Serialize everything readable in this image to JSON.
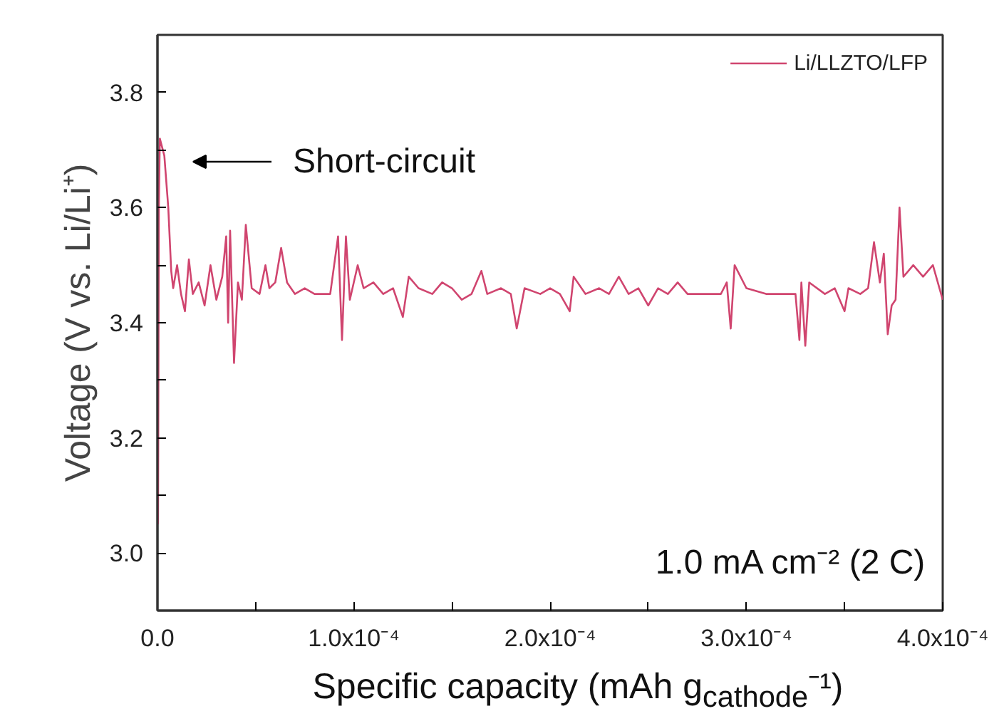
{
  "chart_data": {
    "type": "line",
    "xlabel": "Specific capacity (mAh g$_{cathode}$⁻¹)",
    "ylabel": "Voltage (V vs. Li/Li⁺)",
    "xlim": [
      0,
      0.0004
    ],
    "ylim": [
      2.9,
      3.9
    ],
    "xticks": [
      {
        "value": 0,
        "label": "0.0"
      },
      {
        "value": 5e-05,
        "label": null
      },
      {
        "value": 0.0001,
        "label": "1.0x10⁻⁴"
      },
      {
        "value": 0.00015,
        "label": null
      },
      {
        "value": 0.0002,
        "label": "2.0x10⁻⁴"
      },
      {
        "value": 0.00025,
        "label": null
      },
      {
        "value": 0.0003,
        "label": "3.0x10⁻⁴"
      },
      {
        "value": 0.00035,
        "label": null
      },
      {
        "value": 0.0004,
        "label": "4.0x10⁻⁴"
      }
    ],
    "yticks": [
      {
        "value": 3.0,
        "label": "3.0"
      },
      {
        "value": 3.1,
        "label": null
      },
      {
        "value": 3.2,
        "label": "3.2"
      },
      {
        "value": 3.3,
        "label": null
      },
      {
        "value": 3.4,
        "label": "3.4"
      },
      {
        "value": 3.5,
        "label": null
      },
      {
        "value": 3.6,
        "label": "3.6"
      },
      {
        "value": 3.7,
        "label": null
      },
      {
        "value": 3.8,
        "label": "3.8"
      }
    ],
    "grid": false,
    "legend": "top right",
    "line_style": "solid",
    "annotations": [
      "Short-circuit",
      "1.0 mA cm⁻² (2 C)"
    ],
    "series": [
      {
        "name": "Li/LLZTO/LFP",
        "color": "#d0456f",
        "x": [
          3e-07,
          7e-07,
          1.2e-06,
          3.5e-06,
          5.5e-06,
          7e-06,
          8e-06,
          1e-05,
          1.2e-05,
          1.4e-05,
          1.6e-05,
          1.8e-05,
          2.1e-05,
          2.4e-05,
          2.7e-05,
          3e-05,
          3.3e-05,
          3.5e-05,
          3.6e-05,
          3.7e-05,
          3.9e-05,
          4.1e-05,
          4.3e-05,
          4.5e-05,
          4.8e-05,
          5.2e-05,
          5.5e-05,
          5.7e-05,
          6e-05,
          6.3e-05,
          6.6e-05,
          7e-05,
          7.5e-05,
          8e-05,
          8.8e-05,
          9.2e-05,
          9.4e-05,
          9.6e-05,
          9.8e-05,
          0.000102,
          0.000105,
          0.00011,
          0.000115,
          0.00012,
          0.000125,
          0.000128,
          0.000133,
          0.00014,
          0.000145,
          0.00015,
          0.000155,
          0.00016,
          0.000165,
          0.000168,
          0.000175,
          0.00018,
          0.000183,
          0.000187,
          0.000195,
          0.0002,
          0.000205,
          0.00021,
          0.000212,
          0.000218,
          0.000225,
          0.00023,
          0.000235,
          0.00024,
          0.000245,
          0.00025,
          0.000255,
          0.00026,
          0.000265,
          0.00027,
          0.00028,
          0.000287,
          0.00029,
          0.000292,
          0.000294,
          0.0003,
          0.00031,
          0.000325,
          0.000327,
          0.000328,
          0.00033,
          0.000332,
          0.00034,
          0.000345,
          0.00035,
          0.000352,
          0.000358,
          0.000362,
          0.000365,
          0.000368,
          0.00037,
          0.000372,
          0.000374,
          0.000376,
          0.000378,
          0.00038,
          0.000385,
          0.00039,
          0.000395,
          0.0004
        ],
        "values": [
          3.05,
          3.6,
          3.72,
          3.69,
          3.6,
          3.49,
          3.46,
          3.5,
          3.45,
          3.42,
          3.51,
          3.45,
          3.47,
          3.43,
          3.5,
          3.44,
          3.48,
          3.55,
          3.4,
          3.56,
          3.33,
          3.47,
          3.44,
          3.57,
          3.46,
          3.45,
          3.5,
          3.46,
          3.47,
          3.53,
          3.47,
          3.45,
          3.46,
          3.45,
          3.45,
          3.55,
          3.37,
          3.55,
          3.44,
          3.5,
          3.46,
          3.47,
          3.45,
          3.46,
          3.41,
          3.48,
          3.46,
          3.45,
          3.47,
          3.46,
          3.44,
          3.45,
          3.49,
          3.45,
          3.46,
          3.45,
          3.39,
          3.46,
          3.45,
          3.46,
          3.45,
          3.42,
          3.48,
          3.45,
          3.46,
          3.45,
          3.48,
          3.45,
          3.46,
          3.43,
          3.46,
          3.45,
          3.47,
          3.45,
          3.45,
          3.45,
          3.47,
          3.39,
          3.5,
          3.46,
          3.45,
          3.45,
          3.37,
          3.47,
          3.36,
          3.47,
          3.45,
          3.46,
          3.42,
          3.46,
          3.45,
          3.46,
          3.54,
          3.47,
          3.52,
          3.38,
          3.43,
          3.44,
          3.6,
          3.48,
          3.5,
          3.48,
          3.5,
          3.44
        ]
      }
    ]
  }
}
